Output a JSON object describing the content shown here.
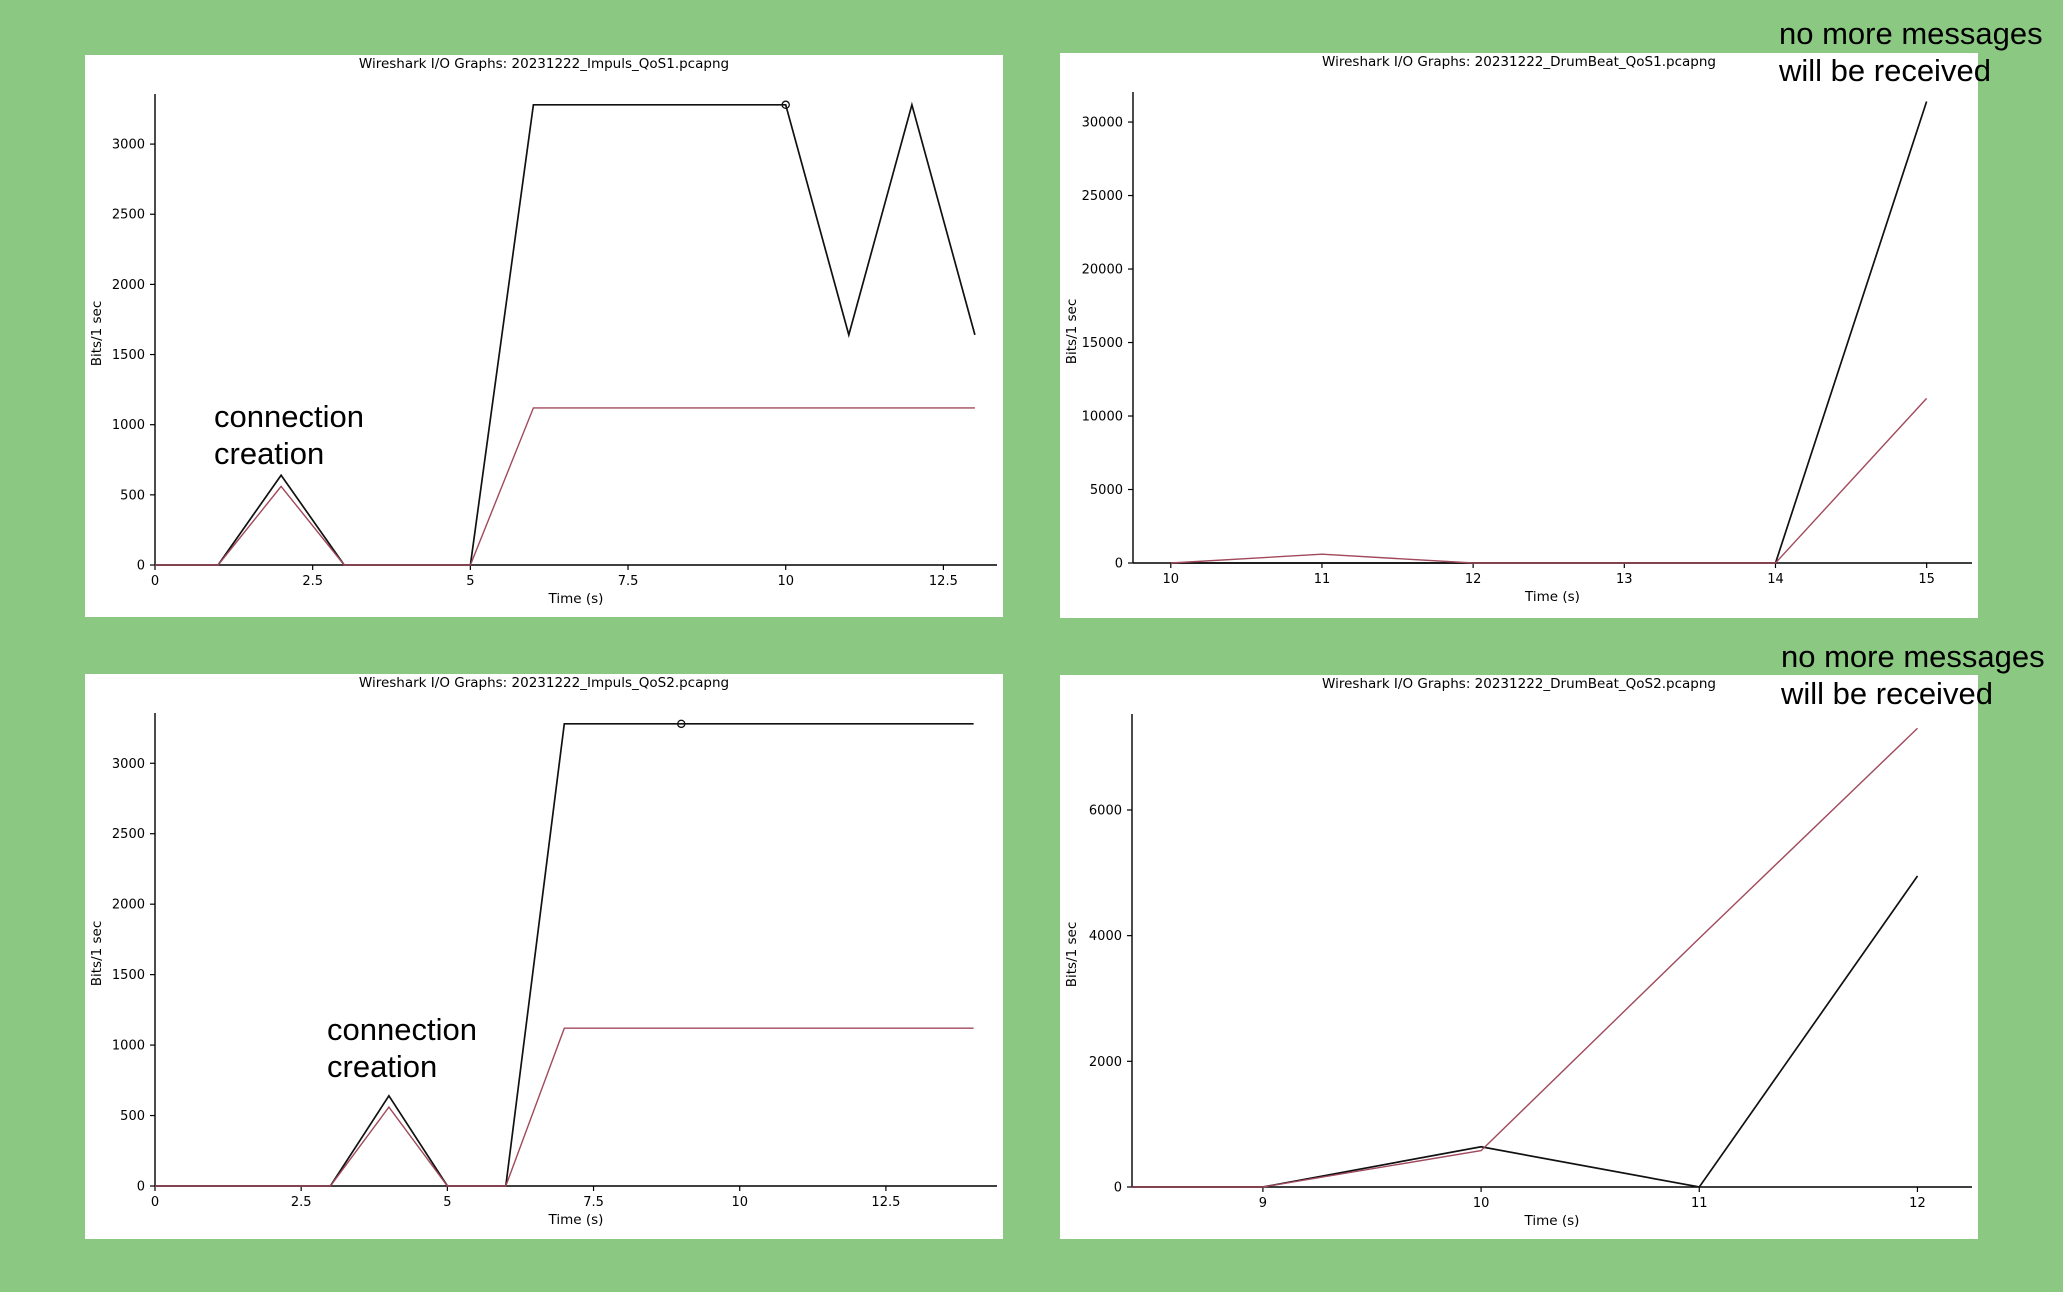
{
  "colors": {
    "background": "#8bc882",
    "series_black": "#111111",
    "series_red": "#a04a5c",
    "axis": "#000000"
  },
  "annotations": [
    {
      "lines": [
        "connection",
        "creation"
      ]
    },
    {
      "lines": [
        "no more messages",
        "will be received"
      ]
    },
    {
      "lines": [
        "connection",
        "creation"
      ]
    },
    {
      "lines": [
        "no more messages",
        "will be received"
      ]
    }
  ],
  "chart_data": [
    {
      "type": "line",
      "title": "Wireshark I/O Graphs: 20231222_Impuls_QoS1.pcapng",
      "xlabel": "Time (s)",
      "ylabel": "Bits/1 sec",
      "xlim": [
        0,
        13.35
      ],
      "ylim": [
        0,
        3300
      ],
      "xticks": [
        0,
        2.5,
        5,
        7.5,
        10,
        12.5
      ],
      "xtick_labels": [
        "0",
        "2.5",
        "5",
        "7.5",
        "10",
        "12.5"
      ],
      "yticks": [
        0,
        500,
        1000,
        1500,
        2000,
        2500,
        3000
      ],
      "ytick_labels": [
        "0",
        "500",
        "1000",
        "1500",
        "2000",
        "2500",
        "3000"
      ],
      "grid": false,
      "legend": "none",
      "series": [
        {
          "color": "#111111",
          "x": [
            0,
            1,
            2,
            3,
            4,
            5,
            6,
            7,
            8,
            9,
            10,
            11,
            12,
            13
          ],
          "values": [
            0,
            0,
            640,
            0,
            0,
            0,
            3280,
            3280,
            3280,
            3280,
            3280,
            1640,
            3280,
            1640
          ],
          "marker_index": 10
        },
        {
          "color": "#a04a5c",
          "x": [
            0,
            1,
            2,
            3,
            4,
            5,
            6,
            7,
            8,
            9,
            10,
            11,
            12,
            13
          ],
          "values": [
            0,
            0,
            560,
            0,
            0,
            0,
            1120,
            1120,
            1120,
            1120,
            1120,
            1120,
            1120,
            1120
          ]
        }
      ]
    },
    {
      "type": "line",
      "title": "Wireshark I/O Graphs: 20231222_DrumBeat_QoS1.pcapng",
      "xlabel": "Time (s)",
      "ylabel": "Bits/1 sec",
      "xlim": [
        9.75,
        15.3
      ],
      "ylim": [
        0,
        31500
      ],
      "xticks": [
        10,
        11,
        12,
        13,
        14,
        15
      ],
      "xtick_labels": [
        "10",
        "11",
        "12",
        "13",
        "14",
        "15"
      ],
      "yticks": [
        0,
        5000,
        10000,
        15000,
        20000,
        25000,
        30000
      ],
      "ytick_labels": [
        "0",
        "5000",
        "10000",
        "15000",
        "20000",
        "25000",
        "30000"
      ],
      "grid": false,
      "legend": "none",
      "series": [
        {
          "color": "#111111",
          "x": [
            10,
            11,
            12,
            13,
            14,
            15
          ],
          "values": [
            0,
            0,
            0,
            0,
            0,
            31400
          ]
        },
        {
          "color": "#a04a5c",
          "x": [
            10,
            11,
            12,
            13,
            14,
            15
          ],
          "values": [
            0,
            600,
            0,
            0,
            0,
            11200
          ]
        }
      ]
    },
    {
      "type": "line",
      "title": "Wireshark I/O Graphs: 20231222_Impuls_QoS2.pcapng",
      "xlabel": "Time (s)",
      "ylabel": "Bits/1 sec",
      "xlim": [
        0,
        14.4
      ],
      "ylim": [
        0,
        3300
      ],
      "xticks": [
        0,
        2.5,
        5,
        7.5,
        10,
        12.5
      ],
      "xtick_labels": [
        "0",
        "2.5",
        "5",
        "7.5",
        "10",
        "12.5"
      ],
      "yticks": [
        0,
        500,
        1000,
        1500,
        2000,
        2500,
        3000
      ],
      "ytick_labels": [
        "0",
        "500",
        "1000",
        "1500",
        "2000",
        "2500",
        "3000"
      ],
      "grid": false,
      "legend": "none",
      "series": [
        {
          "color": "#111111",
          "x": [
            0,
            1,
            2,
            3,
            4,
            5,
            6,
            7,
            8,
            9,
            10,
            11,
            12,
            13,
            14
          ],
          "values": [
            0,
            0,
            0,
            0,
            640,
            0,
            0,
            3280,
            3280,
            3280,
            3280,
            3280,
            3280,
            3280,
            3280
          ],
          "marker_index": 9
        },
        {
          "color": "#a04a5c",
          "x": [
            0,
            1,
            2,
            3,
            4,
            5,
            6,
            7,
            8,
            9,
            10,
            11,
            12,
            13,
            14
          ],
          "values": [
            0,
            0,
            0,
            0,
            560,
            0,
            0,
            1120,
            1120,
            1120,
            1120,
            1120,
            1120,
            1120,
            1120
          ]
        }
      ]
    },
    {
      "type": "line",
      "title": "Wireshark I/O Graphs: 20231222_DrumBeat_QoS2.pcapng",
      "xlabel": "Time (s)",
      "ylabel": "Bits/1 sec",
      "xlim": [
        8.4,
        12.25
      ],
      "ylim": [
        0,
        7400
      ],
      "xticks": [
        9,
        10,
        11,
        12
      ],
      "xtick_labels": [
        "9",
        "10",
        "11",
        "12"
      ],
      "yticks": [
        0,
        2000,
        4000,
        6000
      ],
      "ytick_labels": [
        "0",
        "2000",
        "4000",
        "6000"
      ],
      "grid": false,
      "legend": "none",
      "series": [
        {
          "color": "#111111",
          "x": [
            8.4,
            9,
            10,
            11,
            12
          ],
          "values": [
            0,
            0,
            640,
            0,
            4950
          ]
        },
        {
          "color": "#a04a5c",
          "x": [
            8.4,
            9,
            10,
            11,
            12
          ],
          "values": [
            0,
            0,
            580,
            3960,
            7300
          ]
        }
      ]
    }
  ]
}
